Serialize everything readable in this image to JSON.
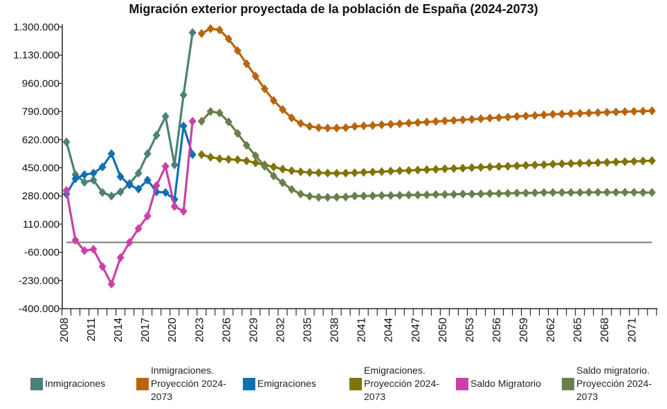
{
  "chart_data": {
    "type": "line",
    "title": "Migración exterior proyectada de la población de España (2024-2073)",
    "xlabel": "",
    "ylabel": "",
    "ylim": [
      -400000,
      1300000
    ],
    "yticks": [
      1300000,
      1130000,
      960000,
      790000,
      620000,
      450000,
      280000,
      110000,
      -60000,
      -230000,
      -400000
    ],
    "ytick_labels": [
      "1.300.000",
      "1.130.000",
      "960.000",
      "790.000",
      "620.000",
      "450.000",
      "280.000",
      "110.000",
      "-60.000",
      "-230.000",
      "-400.000"
    ],
    "xtick_labels": [
      "2008",
      "2011",
      "2014",
      "2017",
      "2020",
      "2023",
      "2026",
      "2029",
      "2032",
      "2035",
      "2038",
      "2041",
      "2044",
      "2047",
      "2050",
      "2053",
      "2056",
      "2059",
      "2062",
      "2065",
      "2068",
      "2071"
    ],
    "grid": false,
    "zero_line": true,
    "legend_position": "bottom",
    "categories": [
      2008,
      2009,
      2010,
      2011,
      2012,
      2013,
      2014,
      2015,
      2016,
      2017,
      2018,
      2019,
      2020,
      2021,
      2022,
      2023,
      2024,
      2025,
      2026,
      2027,
      2028,
      2029,
      2030,
      2031,
      2032,
      2033,
      2034,
      2035,
      2036,
      2037,
      2038,
      2039,
      2040,
      2041,
      2042,
      2043,
      2044,
      2045,
      2046,
      2047,
      2048,
      2049,
      2050,
      2051,
      2052,
      2053,
      2054,
      2055,
      2056,
      2057,
      2058,
      2059,
      2060,
      2061,
      2062,
      2063,
      2064,
      2065,
      2066,
      2067,
      2068,
      2069,
      2070,
      2071,
      2072,
      2073
    ],
    "series": [
      {
        "name": "Inmigraciones",
        "color": "#4b8178",
        "marker": "diamond",
        "values": [
          606000,
          409000,
          363000,
          376000,
          301000,
          280000,
          305000,
          355000,
          418000,
          535000,
          647000,
          760000,
          468000,
          890000,
          1266000,
          null,
          null,
          null,
          null,
          null,
          null,
          null,
          null,
          null,
          null,
          null,
          null,
          null,
          null,
          null,
          null,
          null,
          null,
          null,
          null,
          null,
          null,
          null,
          null,
          null,
          null,
          null,
          null,
          null,
          null,
          null,
          null,
          null,
          null,
          null,
          null,
          null,
          null,
          null,
          null,
          null,
          null,
          null,
          null,
          null,
          null,
          null,
          null,
          null,
          null,
          null
        ]
      },
      {
        "name": "Inmigraciones. Proyección 2024-2073",
        "color": "#b9650f",
        "marker": "diamond",
        "values": [
          null,
          null,
          null,
          null,
          null,
          null,
          null,
          null,
          null,
          null,
          null,
          null,
          null,
          null,
          null,
          1261000,
          1290000,
          1282000,
          1228000,
          1157000,
          1078000,
          1003000,
          927000,
          856000,
          802000,
          752000,
          718000,
          700000,
          692000,
          690000,
          690000,
          692000,
          700000,
          703000,
          706000,
          710000,
          713000,
          716000,
          720000,
          723000,
          726000,
          730000,
          733000,
          736000,
          740000,
          743000,
          746000,
          750000,
          753000,
          756000,
          760000,
          763000,
          766000,
          770000,
          773000,
          775000,
          777000,
          779000,
          781000,
          783000,
          785000,
          787000,
          789000,
          791000,
          792000,
          794000
        ]
      },
      {
        "name": "Emigraciones",
        "color": "#1070b0",
        "marker": "diamond",
        "values": [
          292000,
          384000,
          409000,
          418000,
          455000,
          535000,
          397000,
          347000,
          322000,
          376000,
          305000,
          301000,
          259000,
          702000,
          530000,
          null,
          null,
          null,
          null,
          null,
          null,
          null,
          null,
          null,
          null,
          null,
          null,
          null,
          null,
          null,
          null,
          null,
          null,
          null,
          null,
          null,
          null,
          null,
          null,
          null,
          null,
          null,
          null,
          null,
          null,
          null,
          null,
          null,
          null,
          null,
          null,
          null,
          null,
          null,
          null,
          null,
          null,
          null,
          null,
          null,
          null,
          null,
          null,
          null,
          null,
          null
        ]
      },
      {
        "name": "Emigraciones. Proyección 2024-2073",
        "color": "#7f7407",
        "marker": "diamond",
        "values": [
          null,
          null,
          null,
          null,
          null,
          null,
          null,
          null,
          null,
          null,
          null,
          null,
          null,
          null,
          null,
          530000,
          514000,
          505000,
          501000,
          499000,
          492000,
          480000,
          468000,
          455000,
          442000,
          432000,
          426000,
          422000,
          420000,
          418000,
          417000,
          418000,
          420000,
          423000,
          425000,
          427000,
          430000,
          432000,
          434000,
          437000,
          439000,
          441000,
          444000,
          446000,
          448000,
          451000,
          453000,
          455000,
          458000,
          460000,
          462000,
          465000,
          467000,
          469000,
          472000,
          474000,
          476000,
          478000,
          479000,
          481000,
          483000,
          485000,
          487000,
          489000,
          491000,
          493000
        ]
      },
      {
        "name": "Saldo Migratorio",
        "color": "#c941a8",
        "marker": "diamond",
        "values": [
          313000,
          13000,
          -50000,
          -42000,
          -146000,
          -251000,
          -92000,
          0,
          84000,
          159000,
          343000,
          459000,
          217000,
          188000,
          731000,
          null,
          null,
          null,
          null,
          null,
          null,
          null,
          null,
          null,
          null,
          null,
          null,
          null,
          null,
          null,
          null,
          null,
          null,
          null,
          null,
          null,
          null,
          null,
          null,
          null,
          null,
          null,
          null,
          null,
          null,
          null,
          null,
          null,
          null,
          null,
          null,
          null,
          null,
          null,
          null,
          null,
          null,
          null,
          null,
          null,
          null,
          null,
          null,
          null,
          null,
          null
        ]
      },
      {
        "name": "Saldo migratorio. Proyección 2024-2073",
        "color": "#6a7f4d",
        "marker": "diamond",
        "values": [
          null,
          null,
          null,
          null,
          null,
          null,
          null,
          null,
          null,
          null,
          null,
          null,
          null,
          null,
          null,
          731000,
          790000,
          781000,
          727000,
          658000,
          586000,
          523000,
          459000,
          401000,
          360000,
          320000,
          292000,
          278000,
          272000,
          272000,
          273000,
          274000,
          280000,
          280000,
          281000,
          283000,
          283000,
          284000,
          286000,
          286000,
          287000,
          289000,
          289000,
          290000,
          292000,
          292000,
          293000,
          295000,
          295000,
          296000,
          298000,
          298000,
          299000,
          301000,
          301000,
          301000,
          301000,
          301000,
          302000,
          302000,
          302000,
          302000,
          302000,
          302000,
          301000,
          301000
        ]
      }
    ]
  }
}
